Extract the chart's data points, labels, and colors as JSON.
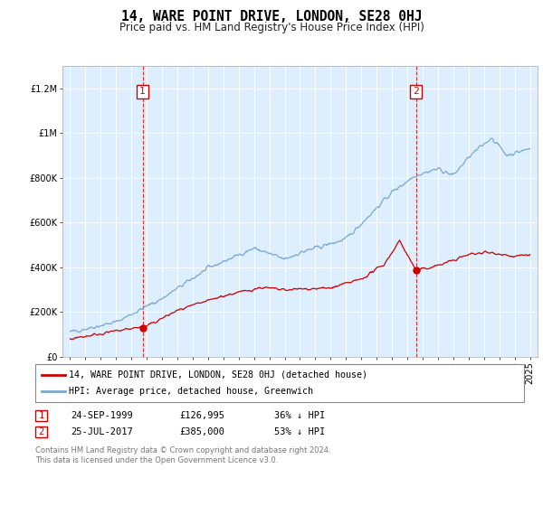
{
  "title": "14, WARE POINT DRIVE, LONDON, SE28 0HJ",
  "subtitle": "Price paid vs. HM Land Registry's House Price Index (HPI)",
  "legend_line1": "14, WARE POINT DRIVE, LONDON, SE28 0HJ (detached house)",
  "legend_line2": "HPI: Average price, detached house, Greenwich",
  "footnote": "Contains HM Land Registry data © Crown copyright and database right 2024.\nThis data is licensed under the Open Government Licence v3.0.",
  "point1_date": "24-SEP-1999",
  "point1_price": "£126,995",
  "point1_hpi": "36% ↓ HPI",
  "point1_year": 1999.73,
  "point1_value": 126995,
  "point2_date": "25-JUL-2017",
  "point2_price": "£385,000",
  "point2_hpi": "53% ↓ HPI",
  "point2_year": 2017.56,
  "point2_value": 385000,
  "red_color": "#cc0000",
  "blue_color": "#7ba7d0",
  "background_color": "#ddeeff",
  "ylim": [
    0,
    1300000
  ],
  "xlim": [
    1994.5,
    2025.5
  ],
  "yticks": [
    0,
    200000,
    400000,
    600000,
    800000,
    1000000,
    1200000
  ],
  "ytick_labels": [
    "£0",
    "£200K",
    "£400K",
    "£600K",
    "£800K",
    "£1M",
    "£1.2M"
  ]
}
